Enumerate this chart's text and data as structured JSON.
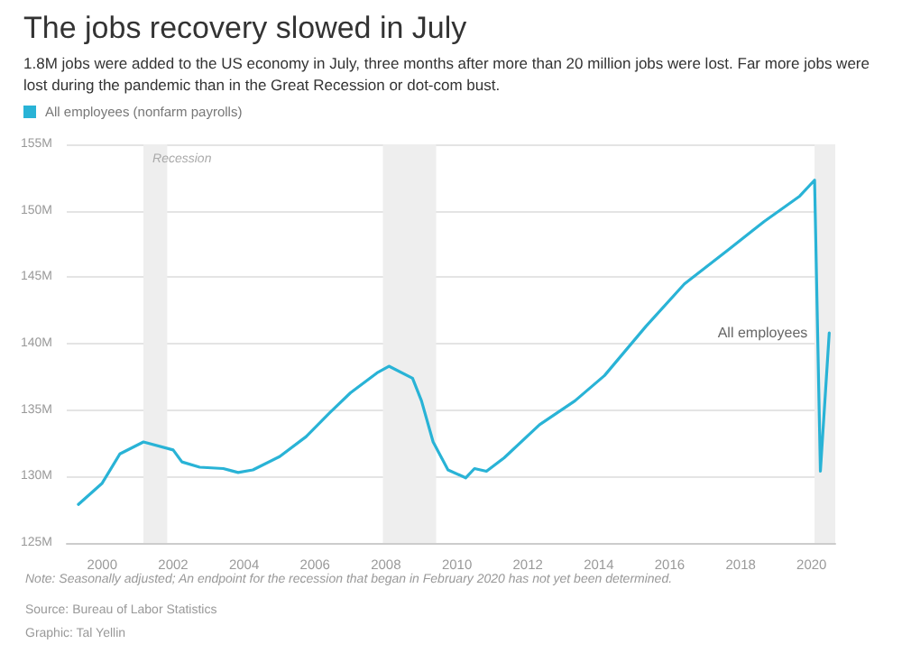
{
  "chart_data": {
    "type": "line",
    "title": "The jobs recovery slowed in July",
    "subtitle": "1.8M jobs were added to the US economy in July, three months after more than 20 million jobs were lost. Far more jobs were lost during the pandemic than in the Great Recession or dot-com bust.",
    "x": [
      "1999-05",
      "2000-01",
      "2000-07",
      "2001-03",
      "2002-01",
      "2002-04",
      "2002-10",
      "2003-06",
      "2003-11",
      "2004-04",
      "2005-01",
      "2005-10",
      "2006-06",
      "2007-01",
      "2007-10",
      "2008-02",
      "2008-10",
      "2009-01",
      "2009-05",
      "2009-10",
      "2010-04",
      "2010-07",
      "2010-11",
      "2011-05",
      "2012-05",
      "2013-05",
      "2014-03",
      "2015-05",
      "2016-06",
      "2017-09",
      "2018-09",
      "2019-09",
      "2020-02",
      "2020-04",
      "2020-07"
    ],
    "series": [
      {
        "name": "All employees (nonfarm payrolls)",
        "color": "#29b3d6",
        "values": [
          127.9,
          129.5,
          131.7,
          132.6,
          132.0,
          131.1,
          130.7,
          130.6,
          130.3,
          130.5,
          131.5,
          133.0,
          134.8,
          136.3,
          137.8,
          138.3,
          137.4,
          135.7,
          132.6,
          130.5,
          129.9,
          130.6,
          130.4,
          131.4,
          133.9,
          135.7,
          137.6,
          141.3,
          144.5,
          147.1,
          149.2,
          151.1,
          152.3,
          130.4,
          140.8
        ]
      }
    ],
    "xlim": [
      "1999-01",
      "2020-09"
    ],
    "xticks": [
      "2000",
      "2002",
      "2004",
      "2006",
      "2008",
      "2010",
      "2012",
      "2014",
      "2016",
      "2018",
      "2020"
    ],
    "ylim": [
      125,
      155
    ],
    "yticks": [
      {
        "value": 125,
        "label": "125M"
      },
      {
        "value": 130,
        "label": "130M"
      },
      {
        "value": 135,
        "label": "135M"
      },
      {
        "value": 140,
        "label": "140M"
      },
      {
        "value": 145,
        "label": "145M"
      },
      {
        "value": 150,
        "label": "150M"
      },
      {
        "value": 155,
        "label": "155M"
      }
    ],
    "bands": [
      {
        "axis": "x",
        "from": "2001-03",
        "to": "2001-11",
        "label": "Recession",
        "color": "#eeeeee"
      },
      {
        "axis": "x",
        "from": "2007-12",
        "to": "2009-06",
        "label": null,
        "color": "#eeeeee"
      },
      {
        "axis": "x",
        "from": "2020-02",
        "to": "2020-09",
        "label": null,
        "color": "#eeeeee"
      }
    ],
    "annotations": [
      {
        "text": "All employees",
        "x": "2020-07",
        "y": 140.8
      },
      "Note: Seasonally adjusted; An endpoint for the recession that began in February 2020 has not yet been determined.",
      "Source: Bureau of Labor Statistics",
      "Graphic: Tal Yellin"
    ],
    "grid": "y",
    "legend": "top left",
    "marker": "none",
    "line_style": "solid"
  }
}
